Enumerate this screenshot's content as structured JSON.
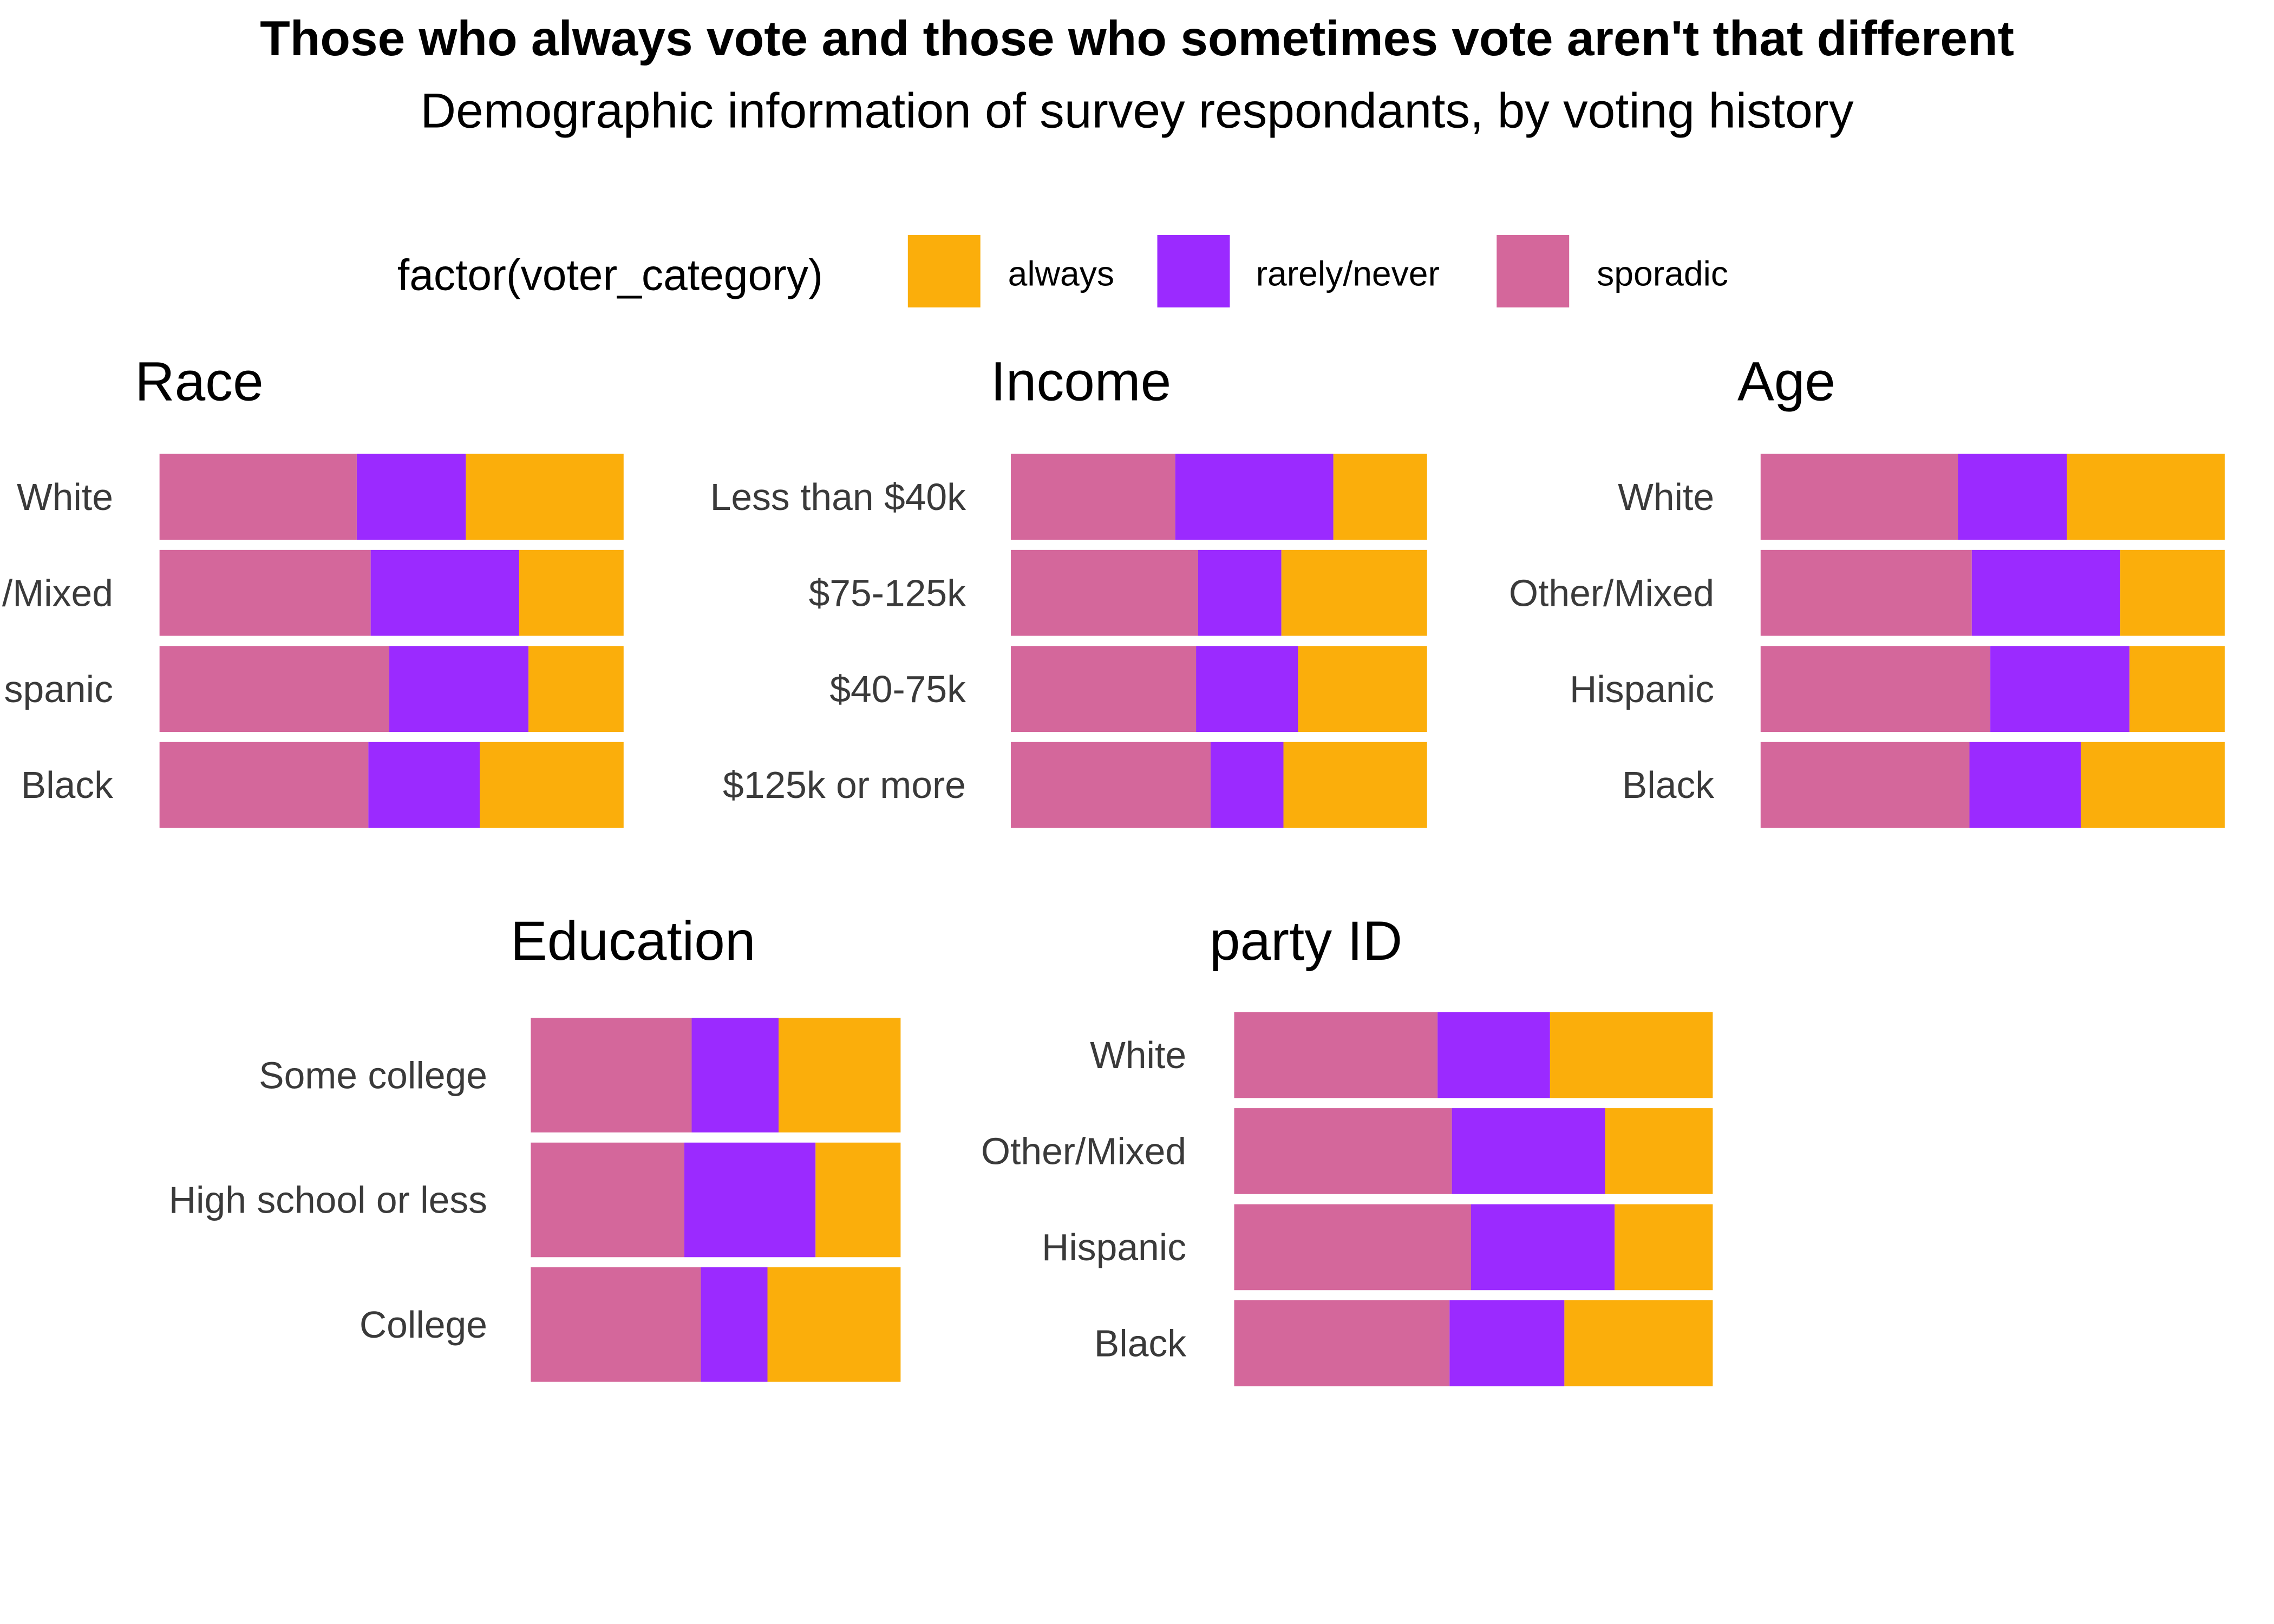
{
  "title": "Those who always vote and those who sometimes vote aren't that different",
  "subtitle": "Demographic information of survey respondants, by voting history",
  "legend": {
    "title": "factor(voter_category)",
    "position": "top",
    "items": [
      {
        "label": "always",
        "color": "#FBAE0B"
      },
      {
        "label": "rarely/never",
        "color": "#9B2AFF"
      },
      {
        "label": "sporadic",
        "color": "#D4679B"
      }
    ]
  },
  "chart_data": [
    {
      "type": "bar",
      "orientation": "horizontal",
      "stacked": "fill",
      "title": "Race",
      "xlabel": "",
      "ylabel": "",
      "categories": [
        "White",
        "Other/Mixed",
        "Hispanic",
        "Black"
      ],
      "visible_tick_labels": [
        "White",
        "/Mixed",
        "spanic",
        "Black"
      ],
      "series": [
        {
          "name": "sporadic",
          "values": [
            0.425,
            0.455,
            0.495,
            0.45
          ]
        },
        {
          "name": "rarely/never",
          "values": [
            0.235,
            0.32,
            0.3,
            0.24
          ]
        },
        {
          "name": "always",
          "values": [
            0.34,
            0.225,
            0.205,
            0.31
          ]
        }
      ],
      "xlim": [
        0,
        1
      ],
      "grid": false
    },
    {
      "type": "bar",
      "orientation": "horizontal",
      "stacked": "fill",
      "title": "Income",
      "xlabel": "",
      "ylabel": "",
      "categories": [
        "Less than $40k",
        "$75-125k",
        "$40-75k",
        "$125k or more"
      ],
      "series": [
        {
          "name": "sporadic",
          "values": [
            0.395,
            0.45,
            0.445,
            0.48
          ]
        },
        {
          "name": "rarely/never",
          "values": [
            0.38,
            0.2,
            0.245,
            0.175
          ]
        },
        {
          "name": "always",
          "values": [
            0.225,
            0.35,
            0.31,
            0.345
          ]
        }
      ],
      "xlim": [
        0,
        1
      ],
      "grid": false
    },
    {
      "type": "bar",
      "orientation": "horizontal",
      "stacked": "fill",
      "title": "Age",
      "xlabel": "",
      "ylabel": "",
      "categories": [
        "White",
        "Other/Mixed",
        "Hispanic",
        "Black"
      ],
      "series": [
        {
          "name": "sporadic",
          "values": [
            0.425,
            0.455,
            0.495,
            0.45
          ]
        },
        {
          "name": "rarely/never",
          "values": [
            0.235,
            0.32,
            0.3,
            0.24
          ]
        },
        {
          "name": "always",
          "values": [
            0.34,
            0.225,
            0.205,
            0.31
          ]
        }
      ],
      "xlim": [
        0,
        1
      ],
      "grid": false
    },
    {
      "type": "bar",
      "orientation": "horizontal",
      "stacked": "fill",
      "title": "Education",
      "xlabel": "",
      "ylabel": "",
      "categories": [
        "Some college",
        "High school or less",
        "College"
      ],
      "series": [
        {
          "name": "sporadic",
          "values": [
            0.435,
            0.415,
            0.46
          ]
        },
        {
          "name": "rarely/never",
          "values": [
            0.235,
            0.355,
            0.18
          ]
        },
        {
          "name": "always",
          "values": [
            0.33,
            0.23,
            0.36
          ]
        }
      ],
      "xlim": [
        0,
        1
      ],
      "grid": false
    },
    {
      "type": "bar",
      "orientation": "horizontal",
      "stacked": "fill",
      "title": "party ID",
      "xlabel": "",
      "ylabel": "",
      "categories": [
        "White",
        "Other/Mixed",
        "Hispanic",
        "Black"
      ],
      "series": [
        {
          "name": "sporadic",
          "values": [
            0.425,
            0.455,
            0.495,
            0.45
          ]
        },
        {
          "name": "rarely/never",
          "values": [
            0.235,
            0.32,
            0.3,
            0.24
          ]
        },
        {
          "name": "always",
          "values": [
            0.34,
            0.225,
            0.205,
            0.31
          ]
        }
      ],
      "xlim": [
        0,
        1
      ],
      "grid": false
    }
  ]
}
